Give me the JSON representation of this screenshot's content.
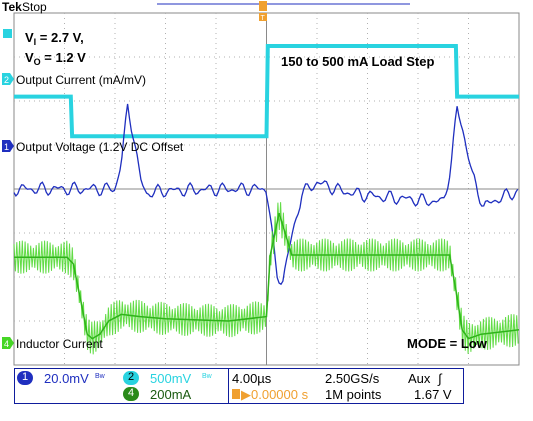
{
  "header": {
    "brand": "Tek",
    "status": "Stop"
  },
  "annotations": {
    "vi_label": "V",
    "vi_sub": "I",
    "vi_value": " = 2.7 V,",
    "vo_label": "V",
    "vo_sub": "O",
    "vo_value": " = 1.2 V",
    "load_step": "150 to 500 mA Load Step",
    "mode": "MODE = Low"
  },
  "channels": [
    {
      "id": "1",
      "name": "Output Voltage (1.2V DC Offset",
      "color": "#1f2fbf",
      "scale": "20.0mV",
      "suffix": "Bw"
    },
    {
      "id": "2",
      "name": "Output Current (mA/mV)",
      "color": "#29d3e0",
      "scale": "500mV",
      "suffix": "Bw"
    },
    {
      "id": "4",
      "name": "Inductor Current",
      "color": "#46d626",
      "scale": "200mA",
      "suffix": ""
    }
  ],
  "acquisition": {
    "timebase": "4.00µs",
    "sample_rate": "2.50GS/s",
    "trigger_source": "Aux",
    "trigger_slope": "∫",
    "trigger_pos": "▶0.00000 s",
    "record_length": "1M points",
    "trigger_level": "1.67 V"
  },
  "chart_data": {
    "type": "line",
    "title": "",
    "xlabel": "",
    "ylabel": "",
    "x_divisions": 10,
    "y_divisions": 8,
    "time_per_div_us": 4.0,
    "x_range_us": [
      -20,
      20
    ],
    "series": [
      {
        "name": "Output Current (mA/mV)",
        "color": "#29d3e0",
        "x_us": [
          -20,
          -15.5,
          -15.4,
          0,
          0.1,
          15,
          15.1,
          20
        ],
        "y_div": [
          2.1,
          2.1,
          1.2,
          1.2,
          3.25,
          3.25,
          2.1,
          2.1
        ]
      },
      {
        "name": "Output Voltage (1.2V DC Offset",
        "color": "#1f2fbf",
        "x_us": [
          -20,
          -12,
          -11.5,
          -11.0,
          -10.5,
          -10.0,
          -9.5,
          -8.5,
          -6,
          -3,
          0,
          0.3,
          0.8,
          1.3,
          2.0,
          2.8,
          4.0,
          6.0,
          8,
          12,
          14.0,
          14.6,
          15.1,
          15.6,
          16.3,
          17.2,
          18.5,
          20
        ],
        "y_div": [
          0,
          0,
          0.6,
          1.85,
          1.2,
          0.2,
          -0.1,
          -0.05,
          -0.02,
          0,
          0,
          -0.6,
          -2.0,
          -2.05,
          -1.1,
          -0.1,
          0.15,
          -0.05,
          -0.15,
          -0.25,
          -0.3,
          0.5,
          1.85,
          1.3,
          0.3,
          -0.4,
          -0.2,
          -0.05
        ]
      },
      {
        "name": "Inductor Current",
        "color": "#46d626",
        "x_us": [
          -20,
          -15.8,
          -15.3,
          -14.6,
          -14.2,
          -13.8,
          -13.2,
          -12.5,
          -11.5,
          -10,
          -8,
          -3,
          0,
          0.3,
          1.0,
          2.0,
          14.5,
          15.0,
          15.5,
          16.0,
          17,
          20
        ],
        "y_div": [
          -1.55,
          -1.55,
          -1.7,
          -2.7,
          -3.3,
          -3.4,
          -3.3,
          -3.0,
          -2.85,
          -2.9,
          -2.95,
          -3.0,
          -2.9,
          -1.5,
          -0.55,
          -1.5,
          -1.5,
          -2.3,
          -3.2,
          -3.4,
          -3.3,
          -3.2
        ],
        "ripple_div": 0.75
      }
    ]
  }
}
